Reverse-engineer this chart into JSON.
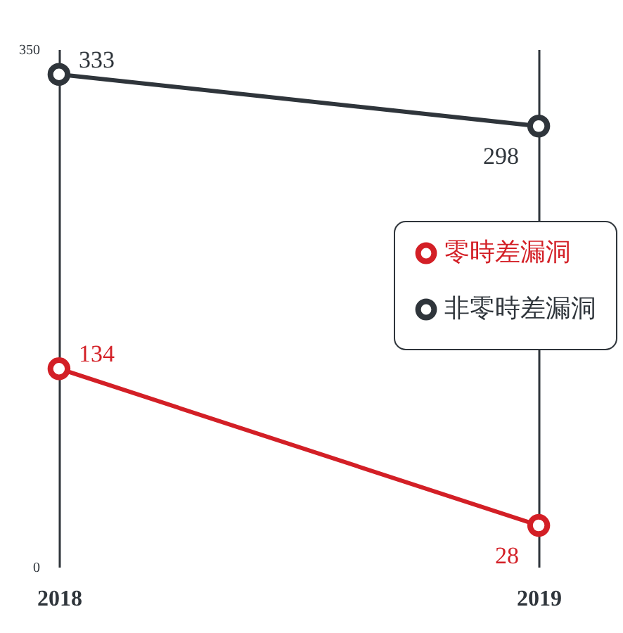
{
  "chart_data": {
    "type": "line",
    "categories": [
      "2018",
      "2019"
    ],
    "series": [
      {
        "name": "零時差漏洞",
        "color": "#d31f26",
        "values": [
          134,
          28
        ]
      },
      {
        "name": "非零時差漏洞",
        "color": "#2f353b",
        "values": [
          333,
          298
        ]
      }
    ],
    "ylim": [
      0,
      350
    ],
    "yticks": [
      0,
      350
    ],
    "grid": "x",
    "legend": "right",
    "marker": "circle",
    "data_labels": true
  }
}
